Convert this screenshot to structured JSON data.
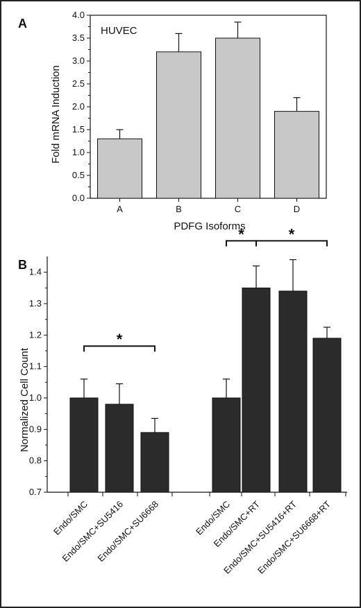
{
  "chart_data": [
    {
      "panel": "A",
      "type": "bar",
      "title": "HUVEC",
      "xlabel": "PDFG Isoforms",
      "ylabel": "Fold mRNA Induction",
      "categories": [
        "A",
        "B",
        "C",
        "D"
      ],
      "values": [
        1.3,
        3.2,
        3.5,
        1.9
      ],
      "errors": [
        0.2,
        0.4,
        0.35,
        0.3
      ],
      "ylim": [
        0,
        4.0
      ],
      "yticks": [
        "0.0",
        "0.5",
        "1.0",
        "1.5",
        "2.0",
        "2.5",
        "3.0",
        "3.5",
        "4.0"
      ],
      "bar_color": "#c8c8c8",
      "grid": false
    },
    {
      "panel": "B",
      "type": "bar",
      "title": "",
      "xlabel": "",
      "ylabel": "Normalized Cell Count",
      "categories": [
        "Endo/SMC",
        "Endo/SMC+SU5416",
        "Endo/SMC+SU6668",
        "Endo/SMC",
        "Endo/SMC+RT",
        "Endo/SMC+SU5416+RT",
        "Endo/SMC+SU6668+RT"
      ],
      "groups": [
        [
          0,
          1,
          2
        ],
        [
          3,
          4,
          5,
          6
        ]
      ],
      "values": [
        1.0,
        0.98,
        0.89,
        1.0,
        1.35,
        1.34,
        1.19
      ],
      "errors": [
        0.06,
        0.065,
        0.045,
        0.06,
        0.07,
        0.1,
        0.035
      ],
      "ylim": [
        0.7,
        1.45
      ],
      "yticks": [
        "0.7",
        "0.8",
        "0.9",
        "1.0",
        "1.1",
        "1.2",
        "1.3",
        "1.4"
      ],
      "bar_color": "#2b2b2b",
      "grid": false,
      "significance": [
        {
          "from": 0,
          "to": 2,
          "label": "*"
        },
        {
          "from": 3,
          "to": 4,
          "label": "*"
        },
        {
          "from": 4,
          "to": 6,
          "label": "*"
        }
      ]
    }
  ]
}
